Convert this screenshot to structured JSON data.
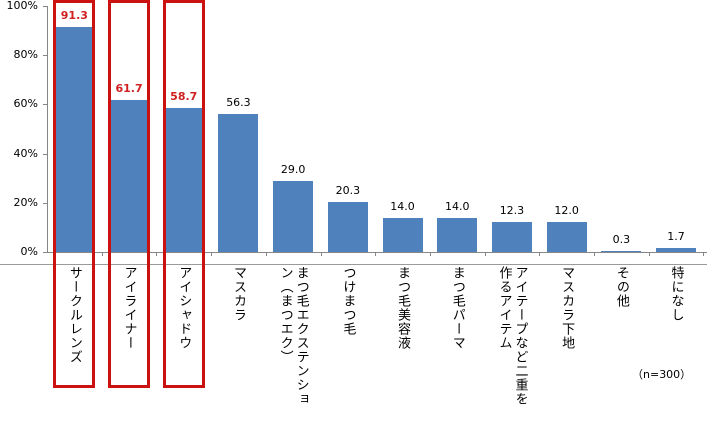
{
  "chart_data": {
    "type": "bar",
    "title": "",
    "xlabel": "",
    "ylabel": "",
    "ylim": [
      0,
      100
    ],
    "yticks": [
      "0%",
      "20%",
      "40%",
      "60%",
      "80%",
      "100%"
    ],
    "grid": false,
    "categories": [
      "サークルレンズ",
      "アイライナー",
      "アイシャドウ",
      "マスカラ",
      "まつ毛エクステンション（まつエク）",
      "つけまつ毛",
      "まつ毛美容液",
      "まつ毛パーマ",
      "アイテープなど二重を作るアイテム",
      "マスカラ下地",
      "その他",
      "特になし"
    ],
    "category_lines": [
      [
        "サークルレンズ"
      ],
      [
        "アイライナー"
      ],
      [
        "アイシャドウ"
      ],
      [
        "マスカラ"
      ],
      [
        "まつ毛エクステンショ",
        "ン（まつエク）"
      ],
      [
        "つけまつ毛"
      ],
      [
        "まつ毛美容液"
      ],
      [
        "まつ毛パーマ"
      ],
      [
        "アイテープなど二重を",
        "作るアイテム"
      ],
      [
        "マスカラ下地"
      ],
      [
        "その他"
      ],
      [
        "特になし"
      ]
    ],
    "values": [
      91.3,
      61.7,
      58.7,
      56.3,
      29.0,
      20.3,
      14.0,
      14.0,
      12.3,
      12.0,
      0.3,
      1.7
    ],
    "value_labels": [
      "91.3",
      "61.7",
      "58.7",
      "56.3",
      "29.0",
      "20.3",
      "14.0",
      "14.0",
      "12.3",
      "12.0",
      "0.3",
      "1.7"
    ],
    "highlighted": [
      0,
      1,
      2
    ],
    "bar_color": "#4f81bd",
    "highlight_color": "#cc1111",
    "annotation": "（n=300）"
  }
}
